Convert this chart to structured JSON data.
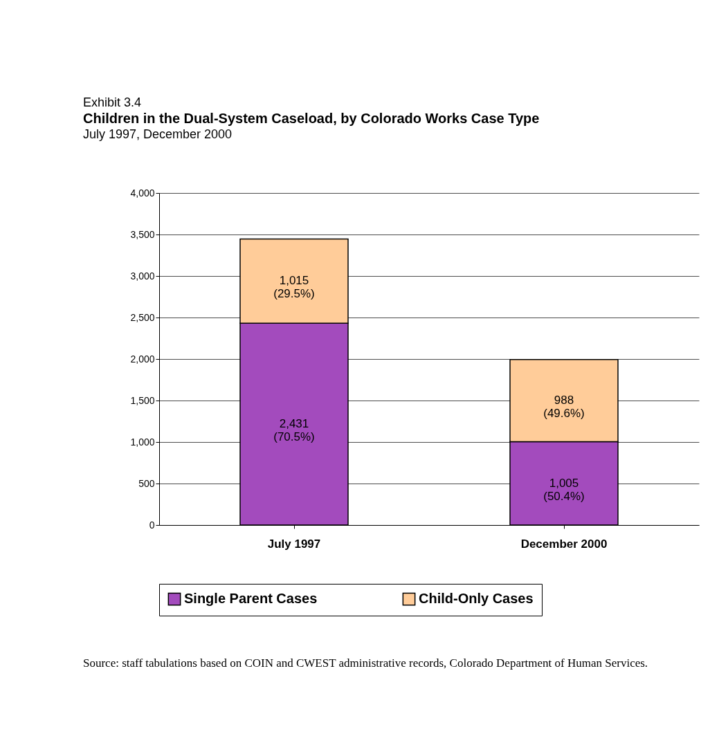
{
  "chart_data": {
    "type": "bar",
    "stacked": true,
    "annotations": [
      "Exhibit 3.4",
      "Source: staff tabulations based on COIN and CWEST administrative records, Colorado Department of Human Services."
    ],
    "title": "Children in the Dual-System Caseload, by Colorado Works Case Type",
    "subtitle": "July 1997, December 2000",
    "categories": [
      "July 1997",
      "December 2000"
    ],
    "series": [
      {
        "name": "Single Parent Cases",
        "color": "#a34bbd",
        "values": [
          2431,
          1005
        ],
        "value_labels": [
          "2,431\n(70.5%)",
          "1,005\n(50.4%)"
        ]
      },
      {
        "name": "Child-Only Cases",
        "color": "#ffcc99",
        "values": [
          1015,
          988
        ],
        "value_labels": [
          "1,015\n(29.5%)",
          "988\n(49.6%)"
        ]
      }
    ],
    "ylim": [
      0,
      4000
    ],
    "yticks": [
      0,
      500,
      {
        "value": 1000,
        "label": "1,000"
      },
      {
        "value": 1500,
        "label": "1,500"
      },
      {
        "value": 2000,
        "label": "2,000"
      },
      {
        "value": 2500,
        "label": "2,500"
      },
      {
        "value": 3000,
        "label": "3,000"
      },
      {
        "value": 3500,
        "label": "3,500"
      },
      {
        "value": 4000,
        "label": "4,000"
      }
    ],
    "grid": "y",
    "legend": "bottom"
  }
}
